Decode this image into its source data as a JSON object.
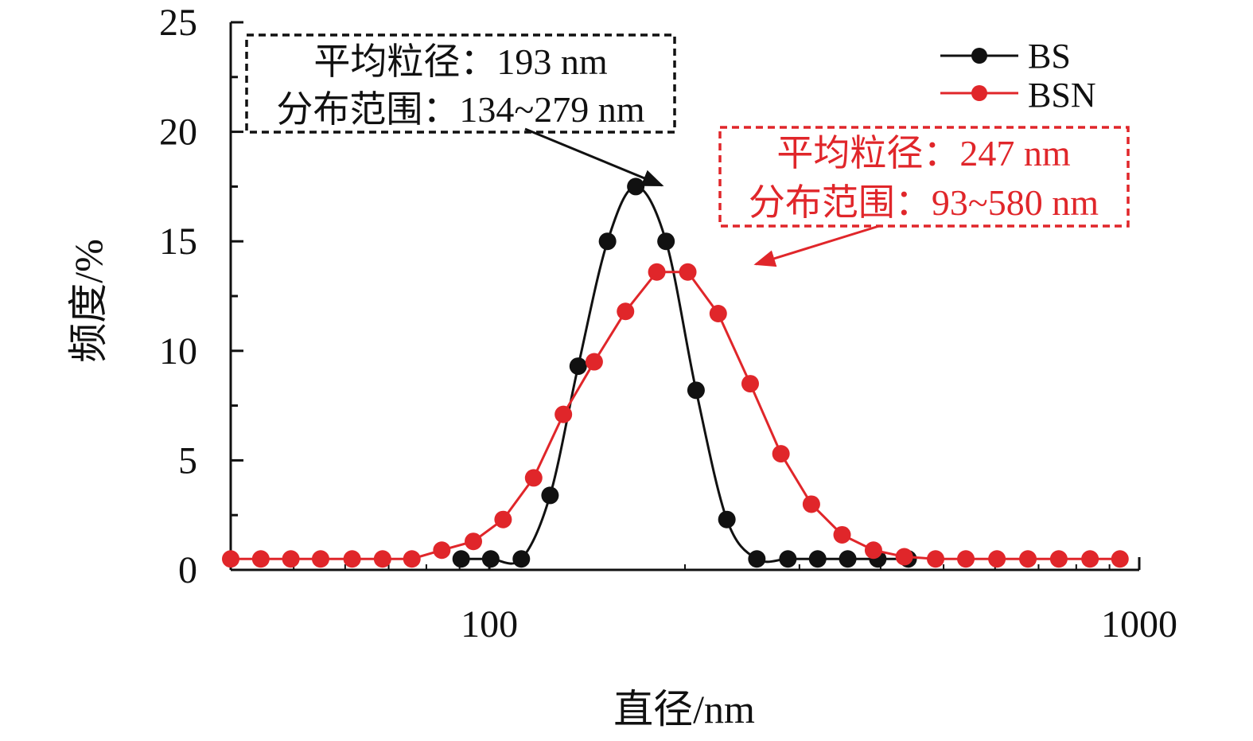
{
  "chart_data": {
    "type": "line",
    "xscale": "log",
    "xlim": [
      40,
      1000
    ],
    "ylim": [
      0,
      25
    ],
    "xlabel": "直径/nm",
    "ylabel": "频度/%",
    "xticks": [
      {
        "value": 100,
        "label": "100"
      },
      {
        "value": 1000,
        "label": "1000"
      }
    ],
    "yticks": [
      {
        "value": 0,
        "label": "0"
      },
      {
        "value": 5,
        "label": "5"
      },
      {
        "value": 10,
        "label": "10"
      },
      {
        "value": 15,
        "label": "15"
      },
      {
        "value": 20,
        "label": "20"
      },
      {
        "value": 25,
        "label": "25"
      }
    ],
    "yminor_step": 2.5,
    "legend_position": "top-right",
    "series": [
      {
        "name": "BS",
        "color": "#111111",
        "smooth": true,
        "points": [
          [
            90.5,
            0.5
          ],
          [
            100.5,
            0.5
          ],
          [
            112,
            0.5
          ],
          [
            124,
            3.4
          ],
          [
            137,
            9.3
          ],
          [
            152,
            15.0
          ],
          [
            168,
            17.5
          ],
          [
            187,
            15.0
          ],
          [
            208,
            8.2
          ],
          [
            232,
            2.3
          ],
          [
            258,
            0.5
          ],
          [
            288,
            0.5
          ],
          [
            320,
            0.5
          ],
          [
            356,
            0.5
          ],
          [
            396,
            0.5
          ],
          [
            441,
            0.5
          ]
        ]
      },
      {
        "name": "BSN",
        "color": "#e0262a",
        "smooth": false,
        "points": [
          [
            40,
            0.5
          ],
          [
            44.5,
            0.5
          ],
          [
            49.5,
            0.5
          ],
          [
            55,
            0.5
          ],
          [
            61.5,
            0.5
          ],
          [
            68.5,
            0.5
          ],
          [
            76,
            0.5
          ],
          [
            84.5,
            0.9
          ],
          [
            94.5,
            1.3
          ],
          [
            105,
            2.3
          ],
          [
            117,
            4.2
          ],
          [
            130,
            7.1
          ],
          [
            145,
            9.5
          ],
          [
            162,
            11.8
          ],
          [
            181,
            13.6
          ],
          [
            202,
            13.6
          ],
          [
            225,
            11.7
          ],
          [
            252,
            8.5
          ],
          [
            281,
            5.3
          ],
          [
            313,
            3.0
          ],
          [
            349,
            1.6
          ],
          [
            390,
            0.9
          ],
          [
            435,
            0.6
          ],
          [
            486,
            0.5
          ],
          [
            541,
            0.5
          ],
          [
            604,
            0.5
          ],
          [
            674,
            0.5
          ],
          [
            752,
            0.5
          ],
          [
            840,
            0.5
          ],
          [
            934,
            0.5
          ]
        ]
      }
    ],
    "annotations": [
      {
        "series": "BS",
        "line1": "平均粒径：193 nm",
        "line2": "分布范围：134~279 nm",
        "color": "#111111",
        "arrow_to": [
          168,
          17.5
        ]
      },
      {
        "series": "BSN",
        "line1": "平均粒径：247 nm",
        "line2": "分布范围：93~580 nm",
        "color": "#e0262a",
        "arrow_to": [
          202,
          13.6
        ]
      }
    ]
  }
}
